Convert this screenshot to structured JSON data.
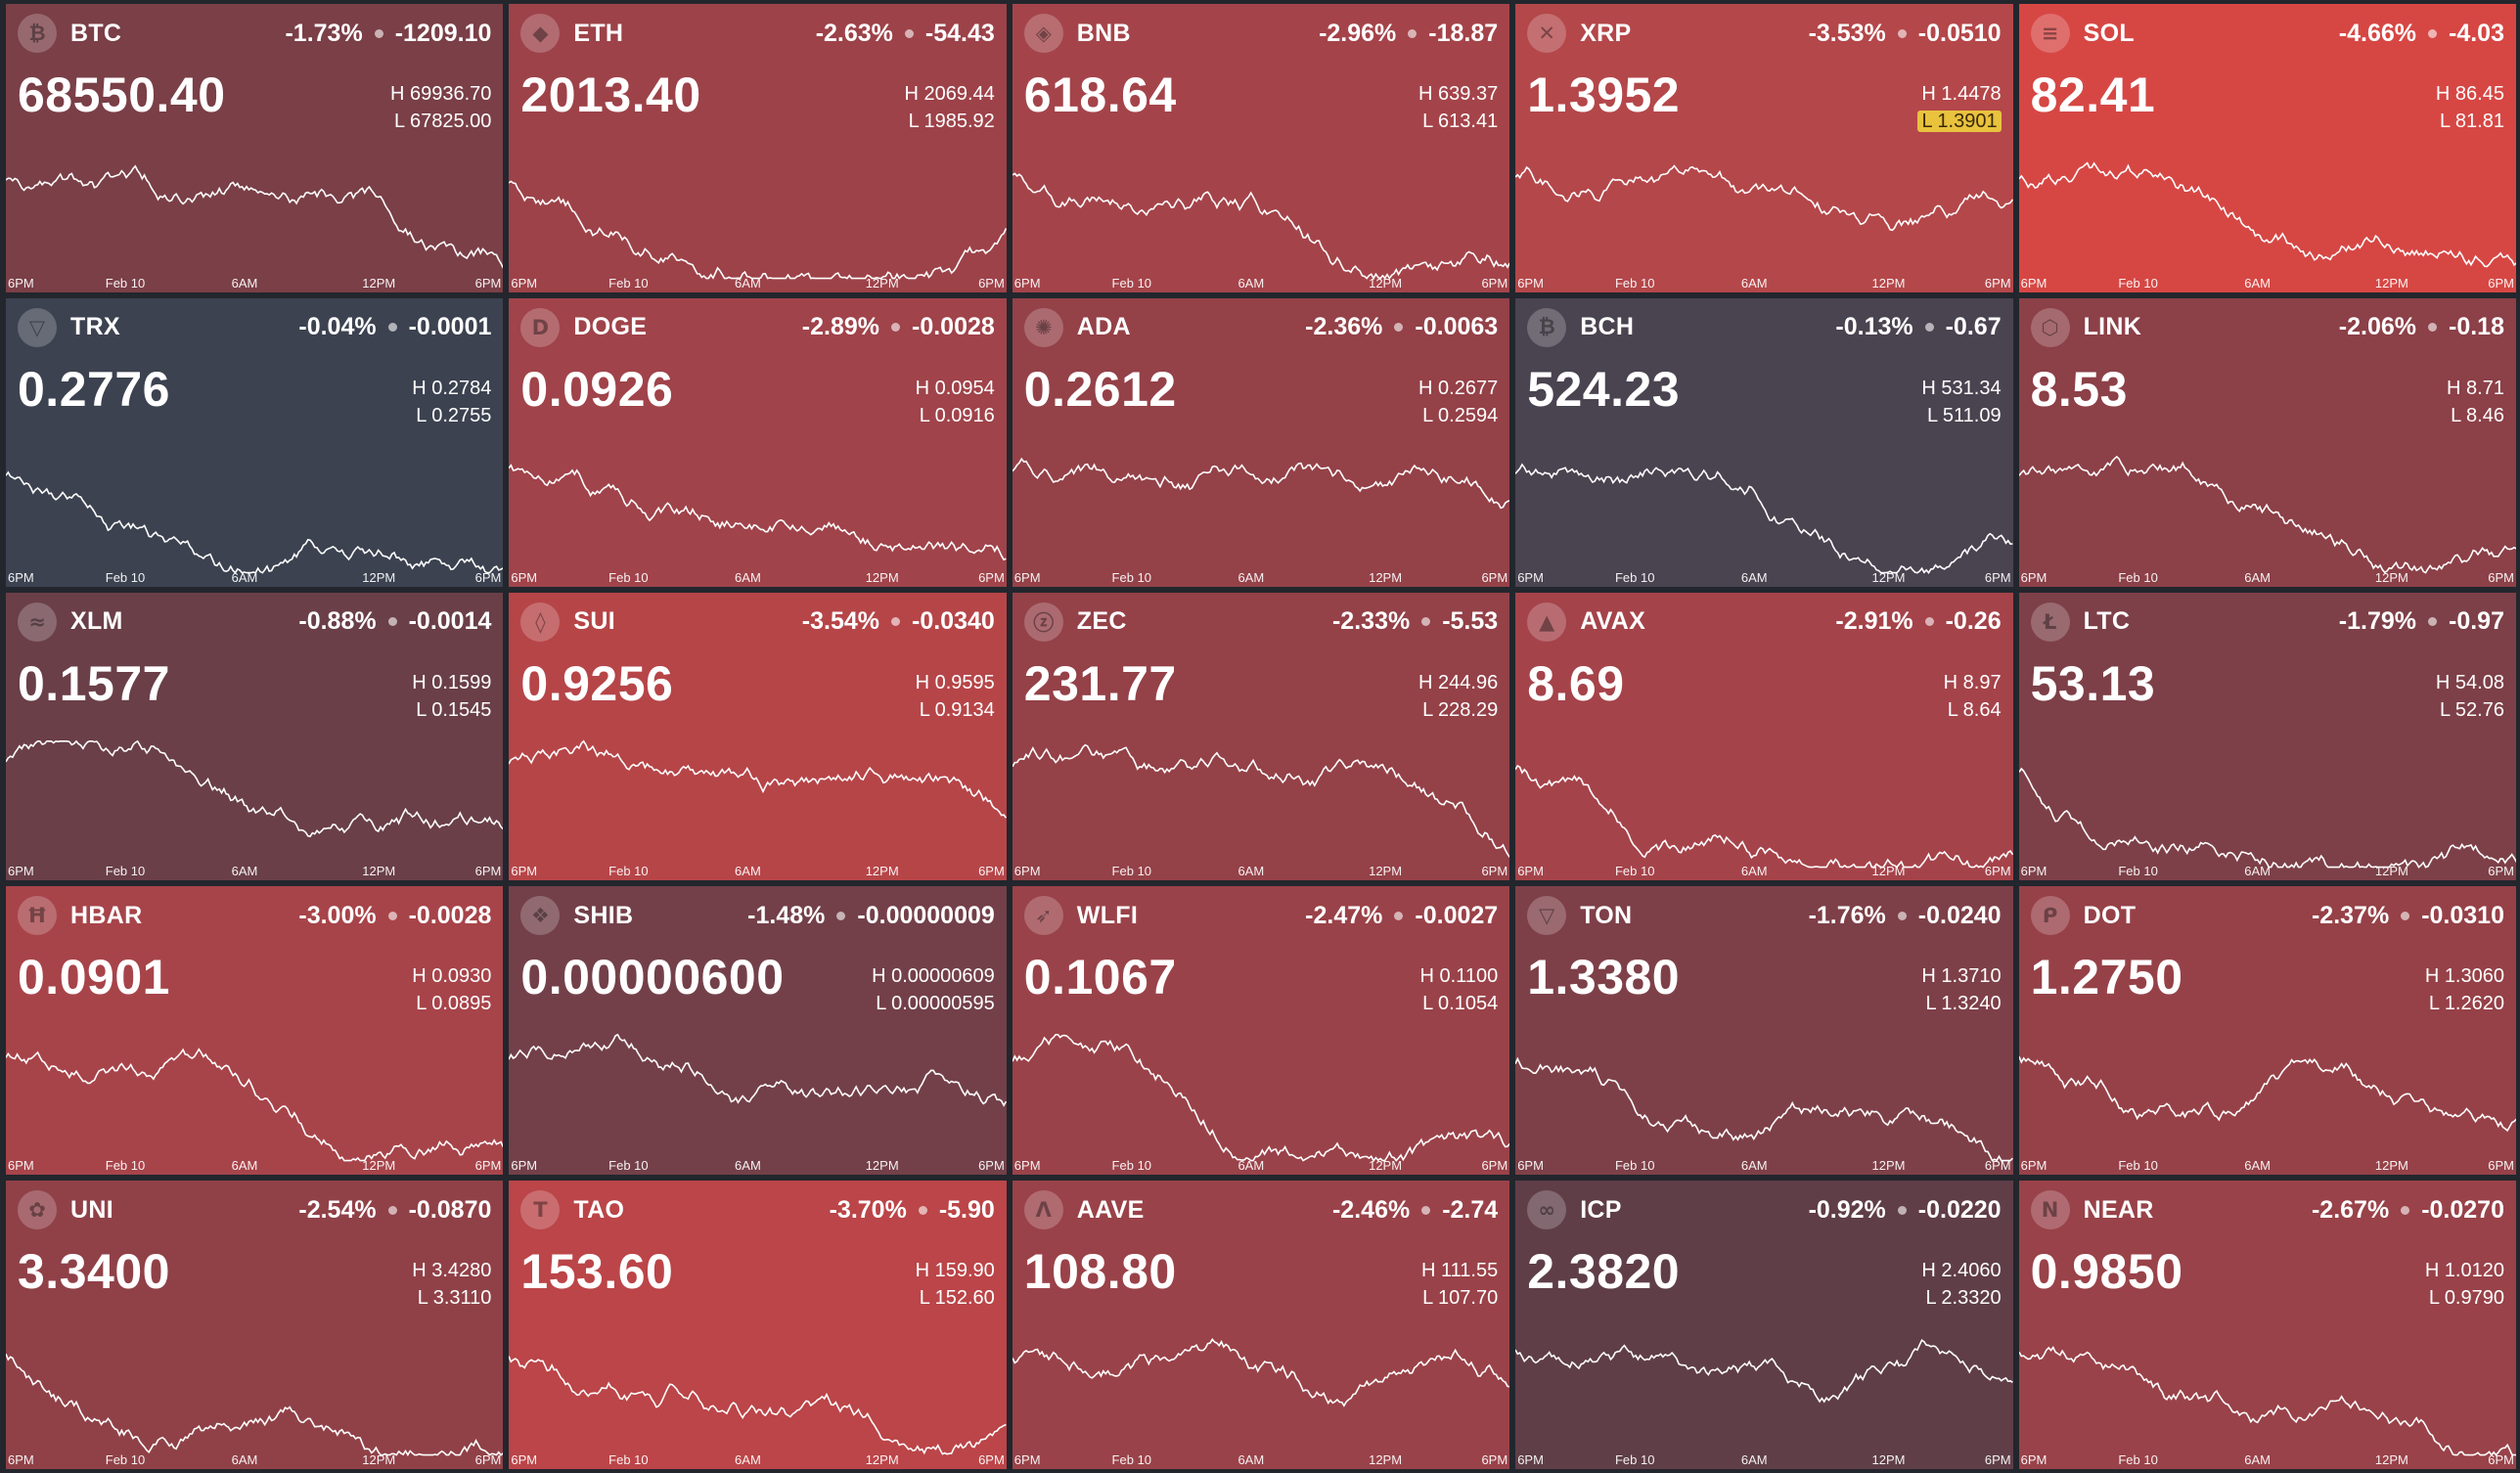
{
  "x_axis_labels": [
    "6PM",
    "Feb 10",
    "6AM",
    "12PM",
    "6PM"
  ],
  "tickers": [
    {
      "symbol": "BTC",
      "icon": "bitcoin-icon",
      "glyph": "₿",
      "change_pct": "-1.73%",
      "change_abs": "-1209.10",
      "price": "68550.40",
      "high": "H 69936.70",
      "low": "L 67825.00",
      "bg": "#7a3f47"
    },
    {
      "symbol": "ETH",
      "icon": "ethereum-icon",
      "glyph": "◆",
      "change_pct": "-2.63%",
      "change_abs": "-54.43",
      "price": "2013.40",
      "high": "H 2069.44",
      "low": "L 1985.92",
      "bg": "#9d4249"
    },
    {
      "symbol": "BNB",
      "icon": "bnb-icon",
      "glyph": "◈",
      "change_pct": "-2.96%",
      "change_abs": "-18.87",
      "price": "618.64",
      "high": "H 639.37",
      "low": "L 613.41",
      "bg": "#a4444a"
    },
    {
      "symbol": "XRP",
      "icon": "xrp-icon",
      "glyph": "✕",
      "change_pct": "-3.53%",
      "change_abs": "-0.0510",
      "price": "1.3952",
      "high": "H 1.4478",
      "low": "L 1.3901",
      "bg": "#b4474a",
      "low_highlight": true
    },
    {
      "symbol": "SOL",
      "icon": "solana-icon",
      "glyph": "≡",
      "change_pct": "-4.66%",
      "change_abs": "-4.03",
      "price": "82.41",
      "high": "H 86.45",
      "low": "L 81.81",
      "bg": "#d64744"
    },
    {
      "symbol": "TRX",
      "icon": "tron-icon",
      "glyph": "▽",
      "change_pct": "-0.04%",
      "change_abs": "-0.0001",
      "price": "0.2776",
      "high": "H 0.2784",
      "low": "L 0.2755",
      "bg": "#3c4250"
    },
    {
      "symbol": "DOGE",
      "icon": "dogecoin-icon",
      "glyph": "D",
      "change_pct": "-2.89%",
      "change_abs": "-0.0028",
      "price": "0.0926",
      "high": "H 0.0954",
      "low": "L 0.0916",
      "bg": "#a0434a"
    },
    {
      "symbol": "ADA",
      "icon": "cardano-icon",
      "glyph": "✺",
      "change_pct": "-2.36%",
      "change_abs": "-0.0063",
      "price": "0.2612",
      "high": "H 0.2677",
      "low": "L 0.2594",
      "bg": "#944148"
    },
    {
      "symbol": "BCH",
      "icon": "bitcoin-cash-icon",
      "glyph": "₿",
      "change_pct": "-0.13%",
      "change_abs": "-0.67",
      "price": "524.23",
      "high": "H 531.34",
      "low": "L 511.09",
      "bg": "#4a4350"
    },
    {
      "symbol": "LINK",
      "icon": "chainlink-icon",
      "glyph": "⬡",
      "change_pct": "-2.06%",
      "change_abs": "-0.18",
      "price": "8.53",
      "high": "H 8.71",
      "low": "L 8.46",
      "bg": "#8c4048"
    },
    {
      "symbol": "XLM",
      "icon": "stellar-icon",
      "glyph": "≈",
      "change_pct": "-0.88%",
      "change_abs": "-0.0014",
      "price": "0.1577",
      "high": "H 0.1599",
      "low": "L 0.1545",
      "bg": "#6a3f48"
    },
    {
      "symbol": "SUI",
      "icon": "sui-icon",
      "glyph": "◊",
      "change_pct": "-3.54%",
      "change_abs": "-0.0340",
      "price": "0.9256",
      "high": "H 0.9595",
      "low": "L 0.9134",
      "bg": "#b64548"
    },
    {
      "symbol": "ZEC",
      "icon": "zcash-icon",
      "glyph": "ⓩ",
      "change_pct": "-2.33%",
      "change_abs": "-5.53",
      "price": "231.77",
      "high": "H 244.96",
      "low": "L 228.29",
      "bg": "#944148"
    },
    {
      "symbol": "AVAX",
      "icon": "avalanche-icon",
      "glyph": "▲",
      "change_pct": "-2.91%",
      "change_abs": "-0.26",
      "price": "8.69",
      "high": "H 8.97",
      "low": "L 8.64",
      "bg": "#a5434a"
    },
    {
      "symbol": "LTC",
      "icon": "litecoin-icon",
      "glyph": "Ł",
      "change_pct": "-1.79%",
      "change_abs": "-0.97",
      "price": "53.13",
      "high": "H 54.08",
      "low": "L 52.76",
      "bg": "#7d4048"
    },
    {
      "symbol": "HBAR",
      "icon": "hedera-icon",
      "glyph": "Ħ",
      "change_pct": "-3.00%",
      "change_abs": "-0.0028",
      "price": "0.0901",
      "high": "H 0.0930",
      "low": "L 0.0895",
      "bg": "#a7444a"
    },
    {
      "symbol": "SHIB",
      "icon": "shiba-icon",
      "glyph": "❖",
      "change_pct": "-1.48%",
      "change_abs": "-0.00000009",
      "price": "0.00000600",
      "high": "H 0.00000609",
      "low": "L 0.00000595",
      "bg": "#734049"
    },
    {
      "symbol": "WLFI",
      "icon": "wlfi-eagle-icon",
      "glyph": "➶",
      "change_pct": "-2.47%",
      "change_abs": "-0.0027",
      "price": "0.1067",
      "high": "H 0.1100",
      "low": "L 0.1054",
      "bg": "#9a4249"
    },
    {
      "symbol": "TON",
      "icon": "toncoin-icon",
      "glyph": "▽",
      "change_pct": "-1.76%",
      "change_abs": "-0.0240",
      "price": "1.3380",
      "high": "H 1.3710",
      "low": "L 1.3240",
      "bg": "#7e4048"
    },
    {
      "symbol": "DOT",
      "icon": "polkadot-icon",
      "glyph": "ᑭ",
      "change_pct": "-2.37%",
      "change_abs": "-0.0310",
      "price": "1.2750",
      "high": "H 1.3060",
      "low": "L 1.2620",
      "bg": "#964148"
    },
    {
      "symbol": "UNI",
      "icon": "uniswap-icon",
      "glyph": "✿",
      "change_pct": "-2.54%",
      "change_abs": "-0.0870",
      "price": "3.3400",
      "high": "H 3.4280",
      "low": "L 3.3110",
      "bg": "#904148"
    },
    {
      "symbol": "TAO",
      "icon": "bittensor-icon",
      "glyph": "T",
      "change_pct": "-3.70%",
      "change_abs": "-5.90",
      "price": "153.60",
      "high": "H 159.90",
      "low": "L 152.60",
      "bg": "#bb4548"
    },
    {
      "symbol": "AAVE",
      "icon": "aave-icon",
      "glyph": "Λ",
      "change_pct": "-2.46%",
      "change_abs": "-2.74",
      "price": "108.80",
      "high": "H 111.55",
      "low": "L 107.70",
      "bg": "#9a4249"
    },
    {
      "symbol": "ICP",
      "icon": "internet-computer-icon",
      "glyph": "∞",
      "change_pct": "-0.92%",
      "change_abs": "-0.0220",
      "price": "2.3820",
      "high": "H 2.4060",
      "low": "L 2.3320",
      "bg": "#5f3e48"
    },
    {
      "symbol": "NEAR",
      "icon": "near-icon",
      "glyph": "N",
      "change_pct": "-2.67%",
      "change_abs": "-0.0270",
      "price": "0.9850",
      "high": "H 1.0120",
      "low": "L 0.9790",
      "bg": "#994249"
    }
  ]
}
